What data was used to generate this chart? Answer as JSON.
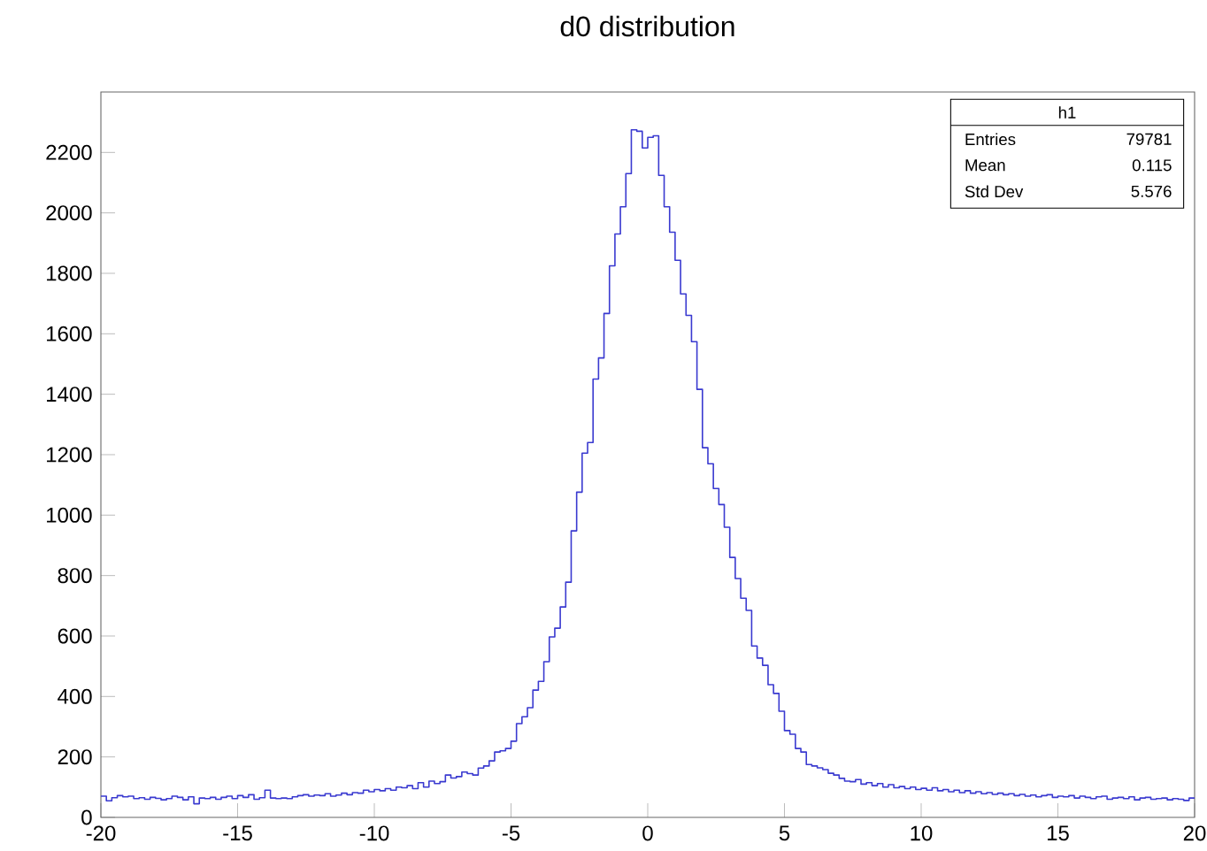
{
  "chart_data": {
    "type": "histogram",
    "title": "d0 distribution",
    "color": "#3a3ad0",
    "bins": [
      -20,
      -19.8,
      -19.6,
      -19.4,
      -19.2,
      -19,
      -18.8,
      -18.6,
      -18.4,
      -18.2,
      -18,
      -17.8,
      -17.6,
      -17.4,
      -17.2,
      -17,
      -16.8,
      -16.6,
      -16.4,
      -16.2,
      -16,
      -15.8,
      -15.6,
      -15.4,
      -15.2,
      -15,
      -14.8,
      -14.6,
      -14.4,
      -14.2,
      -14,
      -13.8,
      -13.6,
      -13.4,
      -13.2,
      -13,
      -12.8,
      -12.6,
      -12.4,
      -12.2,
      -12,
      -11.8,
      -11.6,
      -11.4,
      -11.2,
      -11,
      -10.8,
      -10.6,
      -10.4,
      -10.2,
      -10,
      -9.8,
      -9.6,
      -9.4,
      -9.2,
      -9,
      -8.8,
      -8.6,
      -8.4,
      -8.2,
      -8,
      -7.8,
      -7.6,
      -7.4,
      -7.2,
      -7,
      -6.8,
      -6.6,
      -6.4,
      -6.2,
      -6,
      -5.8,
      -5.6,
      -5.4,
      -5.2,
      -5,
      -4.8,
      -4.6,
      -4.4,
      -4.2,
      -4,
      -3.8,
      -3.6,
      -3.4,
      -3.2,
      -3,
      -2.8,
      -2.6,
      -2.4,
      -2.2,
      -2,
      -1.8,
      -1.6,
      -1.4,
      -1.2,
      -1,
      -0.8,
      -0.6,
      -0.4,
      -0.2,
      0,
      0.2,
      0.4,
      0.6,
      0.8,
      1,
      1.2,
      1.4,
      1.6,
      1.8,
      2,
      2.2,
      2.4,
      2.6,
      2.8,
      3,
      3.2,
      3.4,
      3.6,
      3.8,
      4,
      4.2,
      4.4,
      4.6,
      4.8,
      5,
      5.2,
      5.4,
      5.6,
      5.8,
      6,
      6.2,
      6.4,
      6.6,
      6.8,
      7,
      7.2,
      7.4,
      7.6,
      7.8,
      8,
      8.2,
      8.4,
      8.6,
      8.8,
      9,
      9.2,
      9.4,
      9.6,
      9.8,
      10,
      10.2,
      10.4,
      10.6,
      10.8,
      11,
      11.2,
      11.4,
      11.6,
      11.8,
      12,
      12.2,
      12.4,
      12.6,
      12.8,
      13,
      13.2,
      13.4,
      13.6,
      13.8,
      14,
      14.2,
      14.4,
      14.6,
      14.8,
      15,
      15.2,
      15.4,
      15.6,
      15.8,
      16,
      16.2,
      16.4,
      16.6,
      16.8,
      17,
      17.2,
      17.4,
      17.6,
      17.8,
      18,
      18.2,
      18.4,
      18.6,
      18.8,
      19,
      19.2,
      19.4,
      19.6,
      19.8,
      20
    ],
    "values": [
      70,
      55,
      65,
      72,
      68,
      70,
      62,
      65,
      60,
      66,
      63,
      58,
      62,
      70,
      66,
      58,
      68,
      45,
      64,
      62,
      66,
      60,
      66,
      70,
      62,
      72,
      66,
      75,
      60,
      65,
      90,
      64,
      62,
      64,
      62,
      68,
      72,
      75,
      70,
      74,
      72,
      78,
      70,
      74,
      80,
      75,
      82,
      80,
      90,
      85,
      92,
      88,
      95,
      90,
      100,
      98,
      105,
      95,
      115,
      100,
      120,
      112,
      118,
      140,
      130,
      135,
      150,
      145,
      140,
      163,
      170,
      187,
      216,
      220,
      228,
      252,
      310,
      333,
      363,
      421,
      450,
      515,
      597,
      626,
      696,
      778,
      948,
      1076,
      1205,
      1240,
      1450,
      1520,
      1667,
      1825,
      1930,
      2020,
      2130,
      2275,
      2270,
      2215,
      2250,
      2255,
      2124,
      2020,
      1936,
      1843,
      1732,
      1661,
      1574,
      1416,
      1223,
      1170,
      1088,
      1035,
      960,
      860,
      790,
      725,
      685,
      567,
      527,
      503,
      439,
      410,
      351,
      287,
      275,
      228,
      216,
      175,
      170,
      164,
      158,
      146,
      140,
      129,
      120,
      118,
      125,
      110,
      115,
      105,
      112,
      100,
      108,
      98,
      102,
      95,
      100,
      92,
      96,
      90,
      98,
      88,
      92,
      85,
      90,
      82,
      88,
      80,
      85,
      78,
      82,
      76,
      80,
      75,
      78,
      72,
      76,
      70,
      74,
      68,
      72,
      75,
      66,
      70,
      68,
      72,
      64,
      70,
      66,
      62,
      68,
      70,
      60,
      64,
      66,
      62,
      68,
      58,
      64,
      66,
      60,
      62,
      64,
      58,
      62,
      60,
      56,
      64
    ],
    "xlim": [
      -20,
      20
    ],
    "xticks": [
      -20,
      -15,
      -10,
      -5,
      0,
      5,
      10,
      15,
      20
    ],
    "ylim": [
      0,
      2400
    ],
    "yticks": [
      0,
      200,
      400,
      600,
      800,
      1000,
      1200,
      1400,
      1600,
      1800,
      2000,
      2200
    ],
    "annotations": [
      "h1",
      "Entries",
      "79781",
      "Mean",
      "0.115",
      "Std Dev",
      "5.576"
    ]
  }
}
